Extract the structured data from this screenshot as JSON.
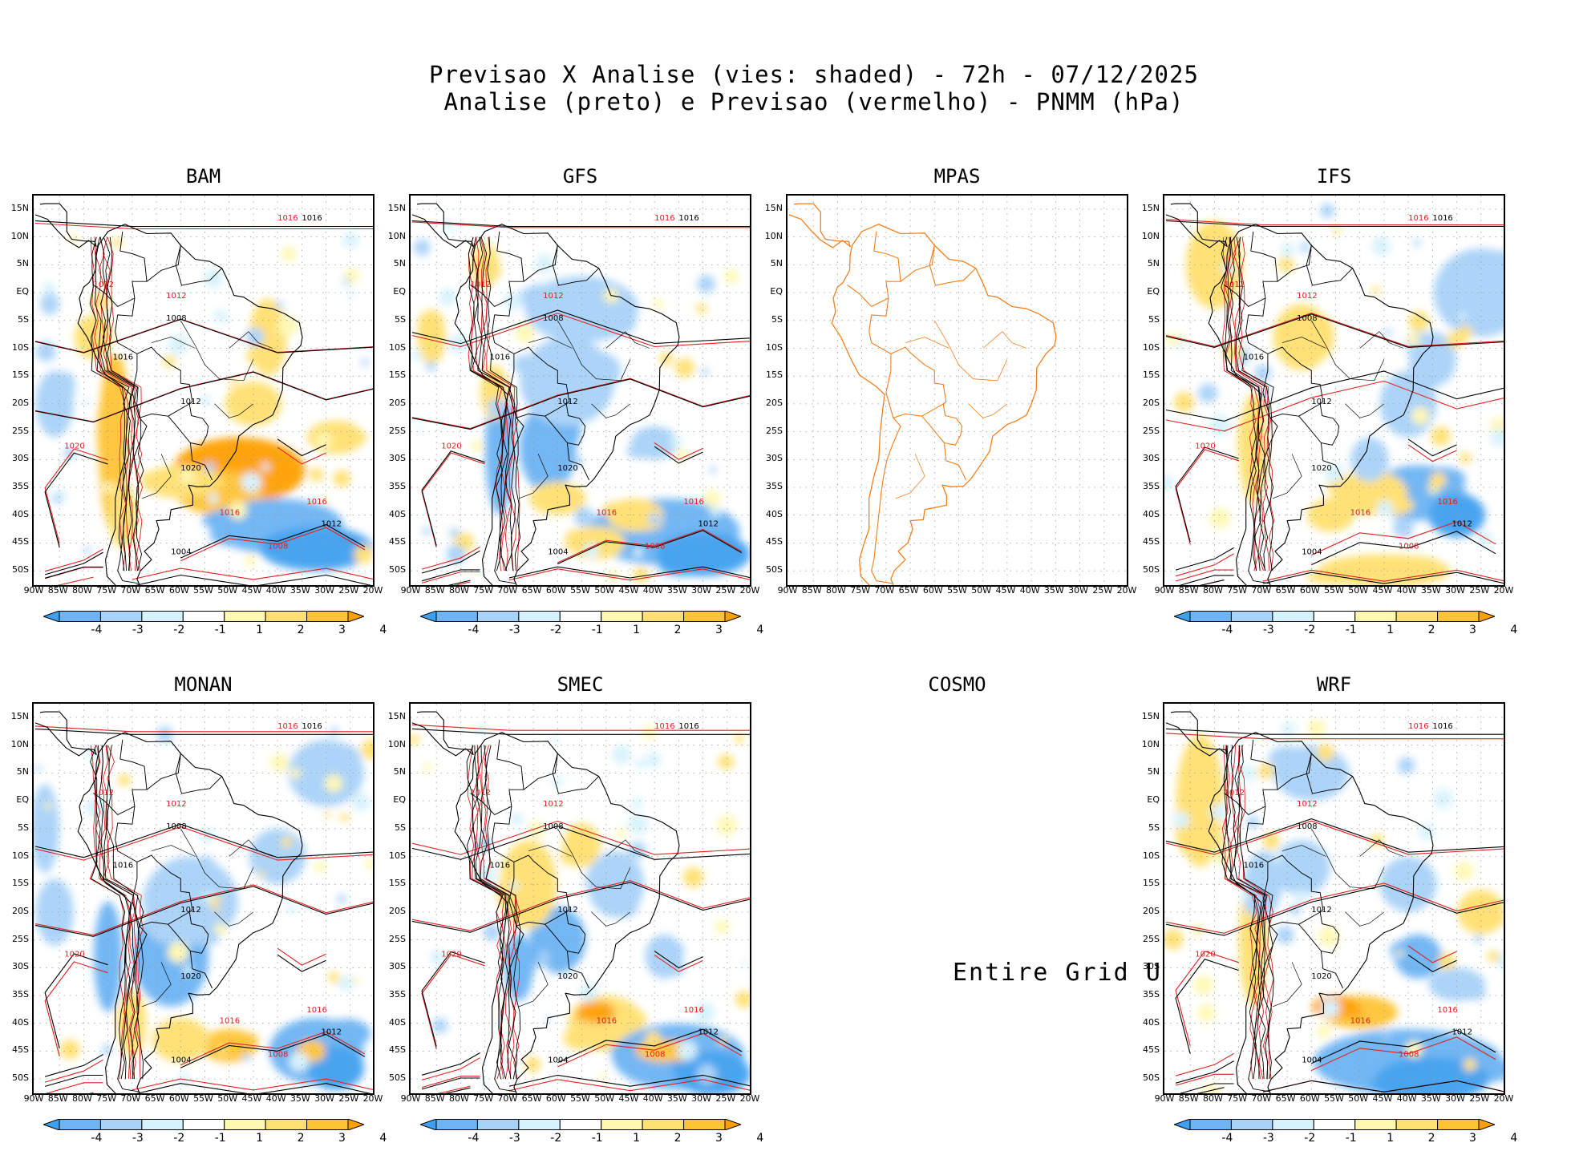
{
  "header": {
    "line1": "Previsao X Analise (vies: shaded) - 72h - 07/12/2025",
    "line2": "Analise (preto) e Previsao (vermelho) - PNMM (hPa)"
  },
  "lat_labels": [
    "15N",
    "10N",
    "5N",
    "EQ",
    "5S",
    "10S",
    "15S",
    "20S",
    "25S",
    "30S",
    "35S",
    "40S",
    "45S",
    "50S"
  ],
  "lon_labels": [
    "90W",
    "85W",
    "80W",
    "75W",
    "70W",
    "65W",
    "60W",
    "55W",
    "50W",
    "45W",
    "40W",
    "35W",
    "30W",
    "25W",
    "20W"
  ],
  "colorbar": {
    "labels": [
      "-4",
      "-3",
      "-2",
      "-1",
      "1",
      "2",
      "3",
      "4"
    ],
    "colors": [
      "#3fa0f0",
      "#6cb4f4",
      "#a8d2f8",
      "#d6f2fc",
      "#ffffff",
      "#fff8b0",
      "#ffe070",
      "#ffc434",
      "#ffa000"
    ]
  },
  "contour_colors": {
    "analysis": "#000000",
    "forecast": "#e02020",
    "coast": "#f08020"
  },
  "panels": [
    {
      "name": "BAM",
      "status": "plot",
      "isobars": [
        "1016",
        "1016",
        "1012",
        "1008",
        "1012",
        "1016",
        "1020",
        "1012",
        "1016",
        "1020",
        "1016",
        "1012",
        "1008",
        "1004"
      ]
    },
    {
      "name": "GFS",
      "status": "plot",
      "isobars": [
        "1016",
        "1016",
        "1012",
        "1008",
        "1012",
        "1016",
        "1020",
        "1012",
        "1016",
        "1020",
        "1016",
        "1012",
        "1008",
        "1004"
      ]
    },
    {
      "name": "MPAS",
      "status": "blank"
    },
    {
      "name": "IFS",
      "status": "plot",
      "isobars": [
        "1016",
        "1016",
        "1012",
        "1008",
        "1012",
        "1016",
        "1020",
        "1012",
        "1016",
        "1020",
        "1016",
        "1012",
        "1008",
        "1004"
      ]
    },
    {
      "name": "MONAN",
      "status": "plot",
      "isobars": [
        "1016",
        "1016",
        "1012",
        "1008",
        "1012",
        "1016",
        "1020",
        "1012",
        "1016",
        "1020",
        "1016",
        "1012",
        "1008",
        "1004"
      ]
    },
    {
      "name": "SMEC",
      "status": "plot",
      "isobars": [
        "1016",
        "1016",
        "1012",
        "1008",
        "1012",
        "1016",
        "1020",
        "1012",
        "1016",
        "1020",
        "1016",
        "1012",
        "1008",
        "1004"
      ]
    },
    {
      "name": "COSMO",
      "status": "undef",
      "message": "Entire Grid Undef"
    },
    {
      "name": "WRF",
      "status": "plot",
      "isobars": [
        "1016",
        "1016",
        "1012",
        "1008",
        "1012",
        "1016",
        "1020",
        "1012",
        "1016",
        "1020",
        "1016",
        "1012",
        "1008",
        "1004"
      ]
    }
  ]
}
